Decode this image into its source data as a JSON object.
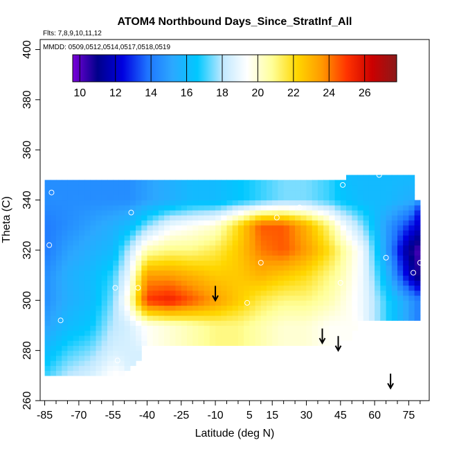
{
  "chart_data": {
    "type": "heatmap",
    "title": "ATOM4 Northbound Days_Since_StratInf_All",
    "annotations": {
      "flights": "Flts: 7,8,9,10,11,12",
      "dates": "MMDD: 0509,0512,0514,0517,0518,0519"
    },
    "xlabel": "Latitude (deg N)",
    "ylabel": "Theta (C)",
    "xlim": [
      -87,
      84
    ],
    "ylim": [
      260,
      404
    ],
    "x_ticks": [
      -85,
      -70,
      -55,
      -40,
      -25,
      -10,
      5,
      15,
      30,
      45,
      60,
      75
    ],
    "x_minor_ticks": [
      -80,
      -75,
      -65,
      -60,
      -50,
      -45,
      -35,
      -30,
      -20,
      -15,
      -5,
      0,
      10,
      20,
      25,
      35,
      40,
      50,
      55,
      65,
      70,
      80
    ],
    "y_ticks": [
      260,
      280,
      300,
      320,
      340,
      360,
      380,
      400
    ],
    "colorbar": {
      "min": 9.6,
      "max": 27.8,
      "ticks": [
        10,
        12,
        14,
        16,
        18,
        20,
        22,
        24,
        26
      ]
    },
    "colormap": [
      "#7a00d8",
      "#00008b",
      "#0000e0",
      "#1e73ff",
      "#2ca8ff",
      "#00c8ff",
      "#bfe8ff",
      "#ffffff",
      "#ffff99",
      "#ffd700",
      "#ff9900",
      "#ff3300",
      "#cc0000",
      "#8b1a1a"
    ],
    "field_grid": {
      "lat": [
        -85,
        -75,
        -65,
        -55,
        -48,
        -40,
        -30,
        -20,
        -10,
        0,
        10,
        20,
        30,
        40,
        45,
        55,
        65,
        75,
        80
      ],
      "theta": [
        270,
        280,
        290,
        300,
        310,
        320,
        330,
        340,
        350
      ],
      "values": [
        [
          17,
          18,
          18.5,
          19.5,
          null,
          null,
          null,
          null,
          null,
          null,
          null,
          null,
          null,
          null,
          null,
          null,
          null,
          null,
          null
        ],
        [
          16,
          17,
          17.5,
          18.5,
          18.5,
          null,
          null,
          null,
          null,
          null,
          null,
          null,
          null,
          null,
          null,
          null,
          null,
          null,
          null
        ],
        [
          15,
          16,
          16.5,
          18,
          18.5,
          19.5,
          20,
          20.5,
          21,
          21,
          20.5,
          20,
          20,
          19.5,
          19.5,
          null,
          null,
          null,
          null
        ],
        [
          14.5,
          15.5,
          16,
          17.5,
          20,
          25,
          25.5,
          24.5,
          23.5,
          22.5,
          21.5,
          21,
          21,
          20.5,
          20,
          19,
          17,
          15,
          14
        ],
        [
          14.5,
          15.5,
          16,
          17,
          19,
          23.5,
          23.5,
          23,
          22.5,
          22.5,
          23,
          22.5,
          22,
          21,
          20.5,
          19,
          16,
          12,
          10.5
        ],
        [
          14,
          15,
          15.5,
          16,
          18,
          20.5,
          21,
          21,
          21.5,
          22.5,
          24,
          24.5,
          23.5,
          22,
          21,
          19,
          15,
          11,
          10
        ],
        [
          14,
          14.5,
          15,
          15.5,
          16,
          17.5,
          19,
          19.5,
          20,
          22,
          24.5,
          24.5,
          23,
          21,
          19.5,
          17.5,
          15,
          13,
          12
        ],
        [
          14.5,
          14.5,
          14.5,
          14.5,
          14.5,
          15,
          15.5,
          16,
          16,
          16.5,
          17,
          17.5,
          17.5,
          17,
          16.5,
          16,
          16,
          15.5,
          null
        ],
        [
          null,
          null,
          null,
          null,
          null,
          null,
          null,
          null,
          null,
          null,
          null,
          null,
          null,
          null,
          null,
          16,
          16,
          16,
          null
        ]
      ]
    },
    "points": [
      {
        "lat": -87,
        "theta": 329
      },
      {
        "lat": -83,
        "theta": 322
      },
      {
        "lat": -82,
        "theta": 343
      },
      {
        "lat": -78,
        "theta": 292
      },
      {
        "lat": -47,
        "theta": 335
      },
      {
        "lat": -44,
        "theta": 305
      },
      {
        "lat": -53,
        "theta": 276
      },
      {
        "lat": -54,
        "theta": 305
      },
      {
        "lat": 4,
        "theta": 299
      },
      {
        "lat": 10,
        "theta": 315
      },
      {
        "lat": 17,
        "theta": 333
      },
      {
        "lat": 27,
        "theta": 337
      },
      {
        "lat": 45,
        "theta": 307
      },
      {
        "lat": 46,
        "theta": 346
      },
      {
        "lat": 62,
        "theta": 350
      },
      {
        "lat": 65,
        "theta": 317
      },
      {
        "lat": 77,
        "theta": 311
      },
      {
        "lat": 80,
        "theta": 315
      },
      {
        "lat": 82,
        "theta": 315
      }
    ],
    "arrows": [
      {
        "lat": -10,
        "theta": 303
      },
      {
        "lat": 37,
        "theta": 286
      },
      {
        "lat": 44,
        "theta": 283
      },
      {
        "lat": 67,
        "theta": 268
      }
    ]
  }
}
